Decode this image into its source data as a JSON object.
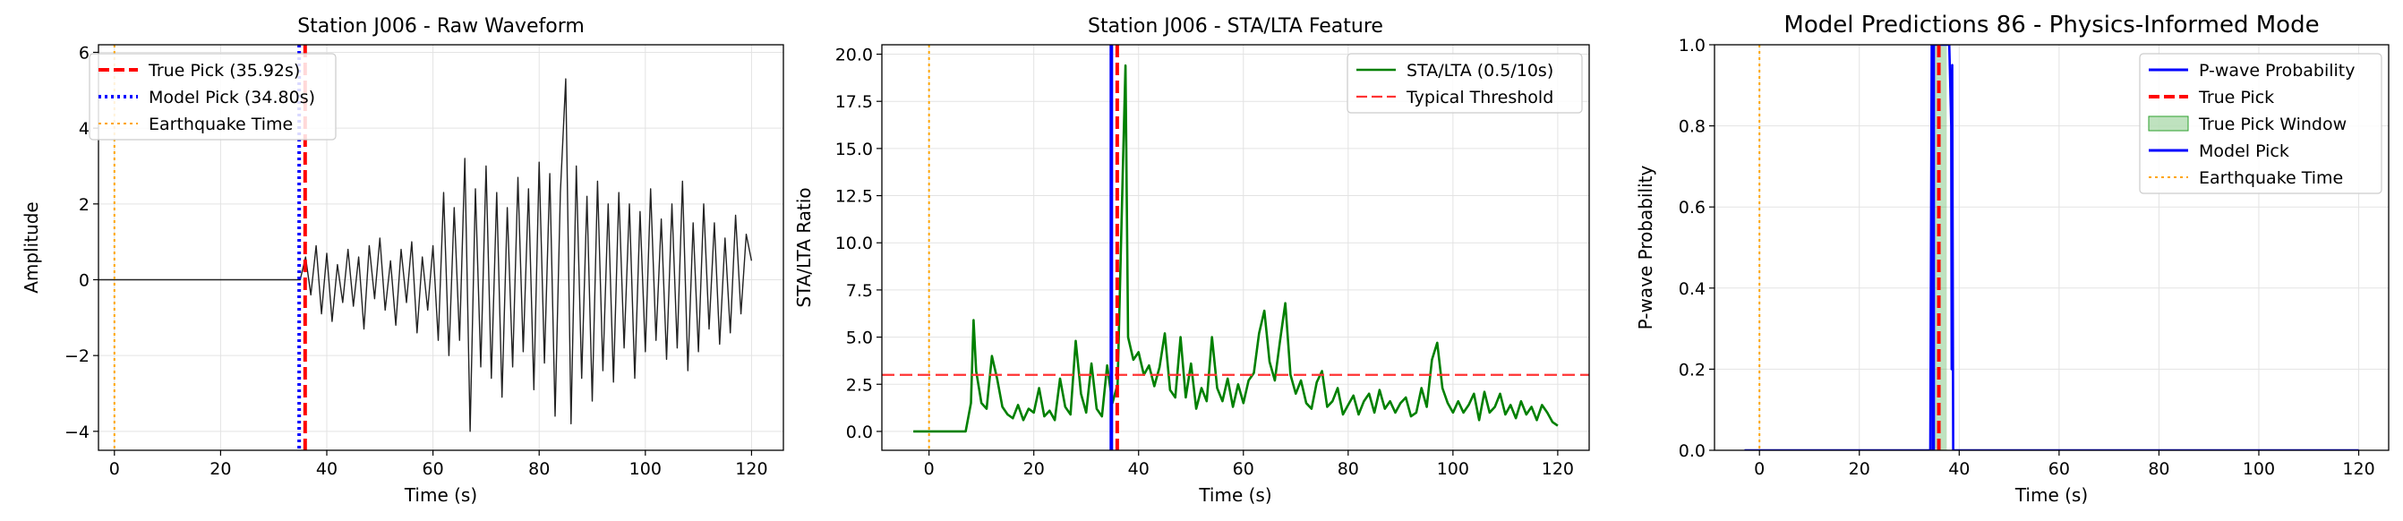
{
  "chart_data": [
    {
      "type": "line",
      "title": "Station J006 - Raw Waveform",
      "xlabel": "Time (s)",
      "ylabel": "Amplitude",
      "xlim": [
        -3,
        126
      ],
      "ylim": [
        -4.5,
        6.2
      ],
      "xticks": [
        0,
        20,
        40,
        60,
        80,
        100,
        120
      ],
      "yticks": [
        -4,
        -2,
        0,
        2,
        4,
        6
      ],
      "ytick_labels": [
        "−4",
        "−2",
        "0",
        "2",
        "4",
        "6"
      ],
      "grid": true,
      "legend_position": "top-left",
      "legend": [
        "True Pick (35.92s)",
        "Model Pick (34.80s)",
        "Earthquake Time"
      ],
      "vlines": [
        {
          "x": 35.92,
          "color": "#ff0000",
          "style": "dashed"
        },
        {
          "x": 34.8,
          "color": "#0000ff",
          "style": "dotted"
        },
        {
          "x": 0,
          "color": "#ffa500",
          "style": "dotted"
        }
      ],
      "series": [
        {
          "color": "#222222",
          "points": [
            [
              -3,
              0
            ],
            [
              35,
              0
            ],
            [
              36,
              0.6
            ],
            [
              37,
              -0.4
            ],
            [
              38,
              0.9
            ],
            [
              39,
              -0.9
            ],
            [
              40,
              0.7
            ],
            [
              41,
              -1.1
            ],
            [
              42,
              0.4
            ],
            [
              43,
              -0.6
            ],
            [
              44,
              0.8
            ],
            [
              45,
              -0.7
            ],
            [
              46,
              0.6
            ],
            [
              47,
              -1.3
            ],
            [
              48,
              0.9
            ],
            [
              49,
              -0.5
            ],
            [
              50,
              1.1
            ],
            [
              51,
              -0.8
            ],
            [
              52,
              0.5
            ],
            [
              53,
              -1.2
            ],
            [
              54,
              0.8
            ],
            [
              55,
              -0.6
            ],
            [
              56,
              1.0
            ],
            [
              57,
              -1.4
            ],
            [
              58,
              0.6
            ],
            [
              59,
              -0.8
            ],
            [
              60,
              0.9
            ],
            [
              61,
              -1.6
            ],
            [
              62,
              2.3
            ],
            [
              63,
              -2.0
            ],
            [
              64,
              1.9
            ],
            [
              65,
              -1.6
            ],
            [
              66,
              3.2
            ],
            [
              67,
              -4.0
            ],
            [
              68,
              2.4
            ],
            [
              69,
              -2.3
            ],
            [
              70,
              3.0
            ],
            [
              71,
              -2.6
            ],
            [
              72,
              2.3
            ],
            [
              73,
              -3.1
            ],
            [
              74,
              1.9
            ],
            [
              75,
              -2.3
            ],
            [
              76,
              2.7
            ],
            [
              77,
              -1.9
            ],
            [
              78,
              2.4
            ],
            [
              79,
              -2.9
            ],
            [
              80,
              3.1
            ],
            [
              81,
              -2.2
            ],
            [
              82,
              2.8
            ],
            [
              83,
              -3.6
            ],
            [
              84,
              2.3
            ],
            [
              85,
              5.3
            ],
            [
              86,
              -3.8
            ],
            [
              87,
              3.0
            ],
            [
              88,
              -2.6
            ],
            [
              89,
              2.2
            ],
            [
              90,
              -3.2
            ],
            [
              91,
              2.6
            ],
            [
              92,
              -2.4
            ],
            [
              93,
              2.0
            ],
            [
              94,
              -2.7
            ],
            [
              95,
              2.3
            ],
            [
              96,
              -1.8
            ],
            [
              97,
              2.0
            ],
            [
              98,
              -2.6
            ],
            [
              99,
              1.8
            ],
            [
              100,
              -1.9
            ],
            [
              101,
              2.4
            ],
            [
              102,
              -1.6
            ],
            [
              103,
              1.6
            ],
            [
              104,
              -2.1
            ],
            [
              105,
              2.0
            ],
            [
              106,
              -1.8
            ],
            [
              107,
              2.6
            ],
            [
              108,
              -2.4
            ],
            [
              109,
              1.5
            ],
            [
              110,
              -1.9
            ],
            [
              111,
              2.0
            ],
            [
              112,
              -1.3
            ],
            [
              113,
              1.5
            ],
            [
              114,
              -1.7
            ],
            [
              115,
              1.1
            ],
            [
              116,
              -1.4
            ],
            [
              117,
              1.7
            ],
            [
              118,
              -0.9
            ],
            [
              119,
              1.2
            ],
            [
              120,
              0.5
            ]
          ]
        }
      ]
    },
    {
      "type": "line",
      "title": "Station J006 - STA/LTA Feature",
      "xlabel": "Time (s)",
      "ylabel": "STA/LTA Ratio",
      "xlim": [
        -9,
        126
      ],
      "ylim": [
        -1,
        20.5
      ],
      "xticks": [
        0,
        20,
        40,
        60,
        80,
        100,
        120
      ],
      "yticks": [
        0.0,
        2.5,
        5.0,
        7.5,
        10.0,
        12.5,
        15.0,
        17.5,
        20.0
      ],
      "ytick_labels": [
        "0.0",
        "2.5",
        "5.0",
        "7.5",
        "10.0",
        "12.5",
        "15.0",
        "17.5",
        "20.0"
      ],
      "grid": true,
      "legend_position": "top-right",
      "legend": [
        "STA/LTA (0.5/10s)",
        "Typical Threshold"
      ],
      "hlines": [
        {
          "y": 3.0,
          "color": "#ff3333",
          "style": "dashed"
        }
      ],
      "vlines": [
        {
          "x": 0,
          "color": "#ffa500",
          "style": "dotted"
        },
        {
          "x": 34.8,
          "color": "#0000ff",
          "style": "solid"
        },
        {
          "x": 35.92,
          "color": "#ff0000",
          "style": "dashed"
        }
      ],
      "series": [
        {
          "color": "#008000",
          "points": [
            [
              -3,
              0
            ],
            [
              7,
              0
            ],
            [
              8,
              1.5
            ],
            [
              8.5,
              5.9
            ],
            [
              9,
              3.2
            ],
            [
              10,
              1.5
            ],
            [
              11,
              1.2
            ],
            [
              12,
              4.0
            ],
            [
              13,
              2.8
            ],
            [
              14,
              1.3
            ],
            [
              15,
              0.9
            ],
            [
              16,
              0.7
            ],
            [
              17,
              1.4
            ],
            [
              18,
              0.6
            ],
            [
              19,
              1.2
            ],
            [
              20,
              1.0
            ],
            [
              21,
              2.3
            ],
            [
              22,
              0.8
            ],
            [
              23,
              1.1
            ],
            [
              24,
              0.6
            ],
            [
              25,
              2.8
            ],
            [
              26,
              1.3
            ],
            [
              27,
              0.9
            ],
            [
              28,
              4.8
            ],
            [
              29,
              2.0
            ],
            [
              30,
              1.0
            ],
            [
              31,
              3.6
            ],
            [
              32,
              1.2
            ],
            [
              33,
              0.8
            ],
            [
              34,
              3.5
            ],
            [
              35,
              1.5
            ],
            [
              36,
              2.5
            ],
            [
              37,
              14.0
            ],
            [
              37.5,
              19.4
            ],
            [
              38,
              5.0
            ],
            [
              39,
              3.8
            ],
            [
              40,
              4.2
            ],
            [
              41,
              3.0
            ],
            [
              42,
              3.5
            ],
            [
              43,
              2.4
            ],
            [
              44,
              3.4
            ],
            [
              45,
              5.2
            ],
            [
              46,
              2.2
            ],
            [
              47,
              1.8
            ],
            [
              48,
              5.0
            ],
            [
              49,
              1.8
            ],
            [
              50,
              3.6
            ],
            [
              51,
              1.2
            ],
            [
              52,
              2.3
            ],
            [
              53,
              1.6
            ],
            [
              54,
              5.0
            ],
            [
              55,
              2.3
            ],
            [
              56,
              1.6
            ],
            [
              57,
              2.8
            ],
            [
              58,
              1.3
            ],
            [
              59,
              2.5
            ],
            [
              60,
              1.5
            ],
            [
              61,
              2.7
            ],
            [
              62,
              3.1
            ],
            [
              63,
              5.2
            ],
            [
              64,
              6.4
            ],
            [
              65,
              3.7
            ],
            [
              66,
              2.7
            ],
            [
              67,
              4.8
            ],
            [
              68,
              6.8
            ],
            [
              69,
              3.0
            ],
            [
              70,
              2.0
            ],
            [
              71,
              2.7
            ],
            [
              72,
              1.5
            ],
            [
              73,
              1.2
            ],
            [
              74,
              2.6
            ],
            [
              75,
              3.2
            ],
            [
              76,
              1.3
            ],
            [
              77,
              1.6
            ],
            [
              78,
              2.3
            ],
            [
              79,
              0.9
            ],
            [
              80,
              1.4
            ],
            [
              81,
              1.9
            ],
            [
              82,
              0.9
            ],
            [
              83,
              1.6
            ],
            [
              84,
              2.0
            ],
            [
              85,
              1.0
            ],
            [
              86,
              2.2
            ],
            [
              87,
              1.2
            ],
            [
              88,
              1.6
            ],
            [
              89,
              1.0
            ],
            [
              90,
              1.5
            ],
            [
              91,
              1.8
            ],
            [
              92,
              0.8
            ],
            [
              93,
              1.0
            ],
            [
              94,
              2.3
            ],
            [
              95,
              1.3
            ],
            [
              96,
              3.8
            ],
            [
              97,
              4.7
            ],
            [
              98,
              2.3
            ],
            [
              99,
              1.5
            ],
            [
              100,
              1.0
            ],
            [
              101,
              1.6
            ],
            [
              102,
              1.0
            ],
            [
              103,
              1.4
            ],
            [
              104,
              2.0
            ],
            [
              105,
              0.6
            ],
            [
              106,
              2.1
            ],
            [
              107,
              1.0
            ],
            [
              108,
              1.3
            ],
            [
              109,
              2.0
            ],
            [
              110,
              0.9
            ],
            [
              111,
              1.4
            ],
            [
              112,
              0.7
            ],
            [
              113,
              1.6
            ],
            [
              114,
              0.9
            ],
            [
              115,
              1.3
            ],
            [
              116,
              0.6
            ],
            [
              117,
              1.4
            ],
            [
              118,
              1.0
            ],
            [
              119,
              0.5
            ],
            [
              120,
              0.3
            ]
          ]
        }
      ]
    },
    {
      "type": "line",
      "title": "Model Predictions 86 - Physics-Informed Mode",
      "xlabel": "Time (s)",
      "ylabel": "P-wave Probability",
      "xlim": [
        -9,
        126
      ],
      "ylim": [
        0,
        1.0
      ],
      "xticks": [
        0,
        20,
        40,
        60,
        80,
        100,
        120
      ],
      "yticks": [
        0.0,
        0.2,
        0.4,
        0.6,
        0.8,
        1.0
      ],
      "ytick_labels": [
        "0.0",
        "0.2",
        "0.4",
        "0.6",
        "0.8",
        "1.0"
      ],
      "grid": true,
      "legend_position": "top-right",
      "legend": [
        "P-wave Probability",
        "True Pick",
        "True Pick Window",
        "Model Pick",
        "Earthquake Time"
      ],
      "spans": [
        {
          "x0": 34.5,
          "x1": 37.5,
          "color": "#2ca02c"
        }
      ],
      "vlines": [
        {
          "x": 0,
          "color": "#ffa500",
          "style": "dotted"
        },
        {
          "x": 34.8,
          "color": "#0000ff",
          "style": "solid"
        },
        {
          "x": 35.92,
          "color": "#ff0000",
          "style": "dashed"
        }
      ],
      "series": [
        {
          "color": "#0000ff",
          "points": [
            [
              -3,
              0
            ],
            [
              34.2,
              0
            ],
            [
              34.5,
              1.0
            ],
            [
              35,
              1.0
            ],
            [
              36,
              1.0
            ],
            [
              37,
              1.0
            ],
            [
              38,
              1.0
            ],
            [
              38.4,
              0.8
            ],
            [
              38.5,
              0.2
            ],
            [
              38.6,
              0.95
            ],
            [
              38.8,
              0
            ],
            [
              120,
              0
            ]
          ]
        }
      ]
    }
  ]
}
